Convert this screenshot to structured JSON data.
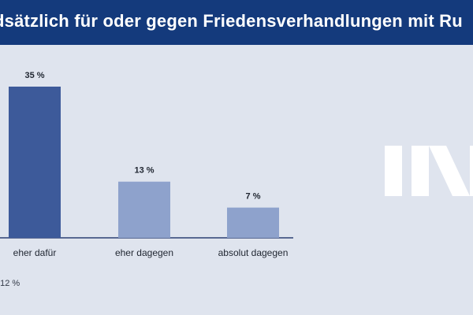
{
  "title": "dsätzlich für oder gegen Friedensverhandlungen mit Ru",
  "footnote": ": 12 %",
  "logo_text": "IN",
  "colors": {
    "header": "#143a7c",
    "background": "#dfe4ee",
    "bar_primary": "#3d5a9a",
    "bar_secondary": "#8ea2cc",
    "axis": "#2b3f73",
    "text": "#1f2530"
  },
  "chart_data": {
    "type": "bar",
    "categories": [
      "eher dafür",
      "eher dagegen",
      "absolut dagegen"
    ],
    "values": [
      35,
      13,
      7
    ],
    "value_labels": [
      "35 %",
      "13 %",
      "7 %"
    ],
    "bar_colors": [
      "#3d5a9a",
      "#8ea2cc",
      "#8ea2cc"
    ],
    "ylim": [
      0,
      40
    ],
    "grid": false
  }
}
